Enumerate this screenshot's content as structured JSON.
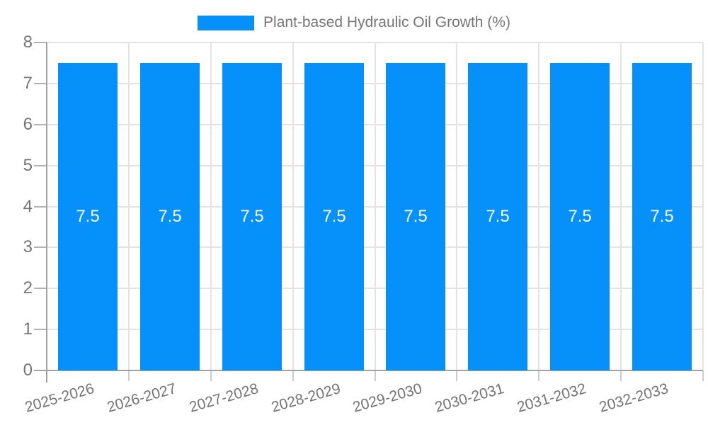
{
  "legend": {
    "position": "top",
    "items": [
      {
        "label": "Plant-based Hydraulic Oil Growth (%)",
        "color": "#0590FA"
      }
    ]
  },
  "chart_data": {
    "type": "bar",
    "title": "Plant-based Hydraulic Oil Growth (%)",
    "categories": [
      "2025-2026",
      "2026-2027",
      "2027-2028",
      "2028-2029",
      "2029-2030",
      "2030-2031",
      "2031-2032",
      "2032-2033"
    ],
    "series": [
      {
        "name": "Plant-based Hydraulic Oil Growth (%)",
        "values": [
          7.5,
          7.5,
          7.5,
          7.5,
          7.5,
          7.5,
          7.5,
          7.5
        ]
      }
    ],
    "value_labels": [
      "7.5",
      "7.5",
      "7.5",
      "7.5",
      "7.5",
      "7.5",
      "7.5",
      "7.5"
    ],
    "xlabel": "",
    "ylabel": "",
    "ylim": [
      0,
      8
    ],
    "yticks": [
      0,
      1,
      2,
      3,
      4,
      5,
      6,
      7,
      8
    ],
    "grid": true,
    "legend_position": "top",
    "colors": {
      "bar": "#0590FA",
      "grid": "#e3e3e3",
      "axis": "#a3a3a3",
      "tick": "#b3b3b3",
      "x_tick": "#cccccc",
      "label_text": "#757575",
      "bar_label": "#ffffff"
    }
  }
}
